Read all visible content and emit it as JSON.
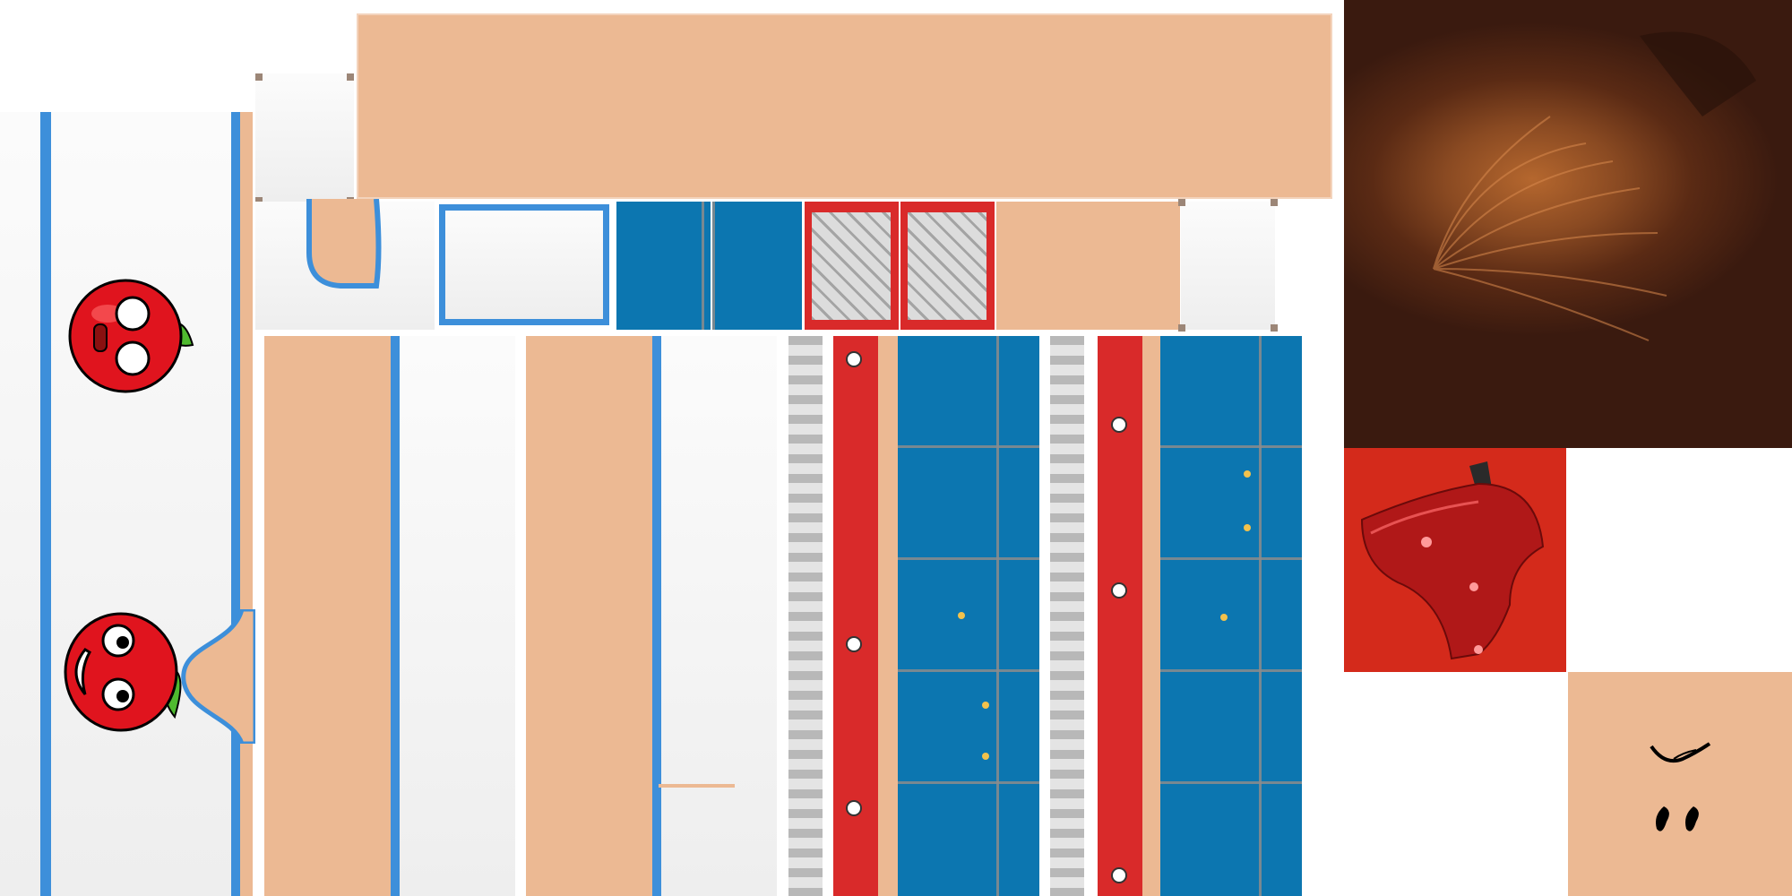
{
  "atlas": {
    "background": "#ffffff",
    "colors": {
      "skin": "#ecb993",
      "shirt_white": "#f6f6f6",
      "trim_blue": "#3d8fda",
      "denim_blue": "#0c76b0",
      "strap_red": "#d92a2a",
      "hair_brown": "#3a1a0f",
      "hat_red": "#d42a1b"
    },
    "decal_icons": [
      "apple-winking-icon",
      "apple-googly-eyes-icon"
    ],
    "face_icons": [
      "smile-mouth-icon",
      "eyes-icon"
    ]
  }
}
